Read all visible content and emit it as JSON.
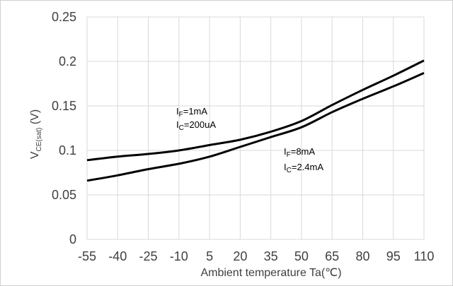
{
  "chart_data": {
    "type": "line",
    "xlabel": "Ambient temperature Ta(℃)",
    "ylabel": {
      "main": "V",
      "sub": "CE(sat)",
      "unit": " (V)"
    },
    "x_ticks": [
      "-55",
      "-40",
      "-25",
      "-10",
      "5",
      "20",
      "35",
      "50",
      "65",
      "80",
      "95",
      "110"
    ],
    "y_ticks": [
      "0",
      "0.05",
      "0.1",
      "0.15",
      "0.2",
      "0.25"
    ],
    "xlim": [
      -55,
      110
    ],
    "ylim": [
      0,
      0.25
    ],
    "grid": true,
    "series": [
      {
        "x": [
          -55,
          -40,
          -25,
          -10,
          5,
          20,
          35,
          50,
          65,
          80,
          95,
          110
        ],
        "y": [
          0.089,
          0.093,
          0.096,
          0.1,
          0.106,
          0.112,
          0.121,
          0.133,
          0.151,
          0.168,
          0.184,
          0.201
        ]
      },
      {
        "x": [
          -55,
          -40,
          -25,
          -10,
          5,
          20,
          35,
          50,
          65,
          80,
          95,
          110
        ],
        "y": [
          0.066,
          0.072,
          0.079,
          0.085,
          0.093,
          0.104,
          0.115,
          0.126,
          0.143,
          0.158,
          0.172,
          0.187
        ]
      }
    ],
    "annotations": [
      {
        "line1": {
          "main": "I",
          "sub": "F",
          "rest": "=1mA"
        },
        "line2": {
          "main": "I",
          "sub": "C",
          "rest": "=200uA"
        }
      },
      {
        "line1": {
          "main": "I",
          "sub": "F",
          "rest": "=8mA"
        },
        "line2": {
          "main": "I",
          "sub": "C",
          "rest": "=2.4mA"
        }
      }
    ],
    "colors": {
      "line": "#000000",
      "grid": "#d9d9d9",
      "text": "#404040"
    }
  }
}
